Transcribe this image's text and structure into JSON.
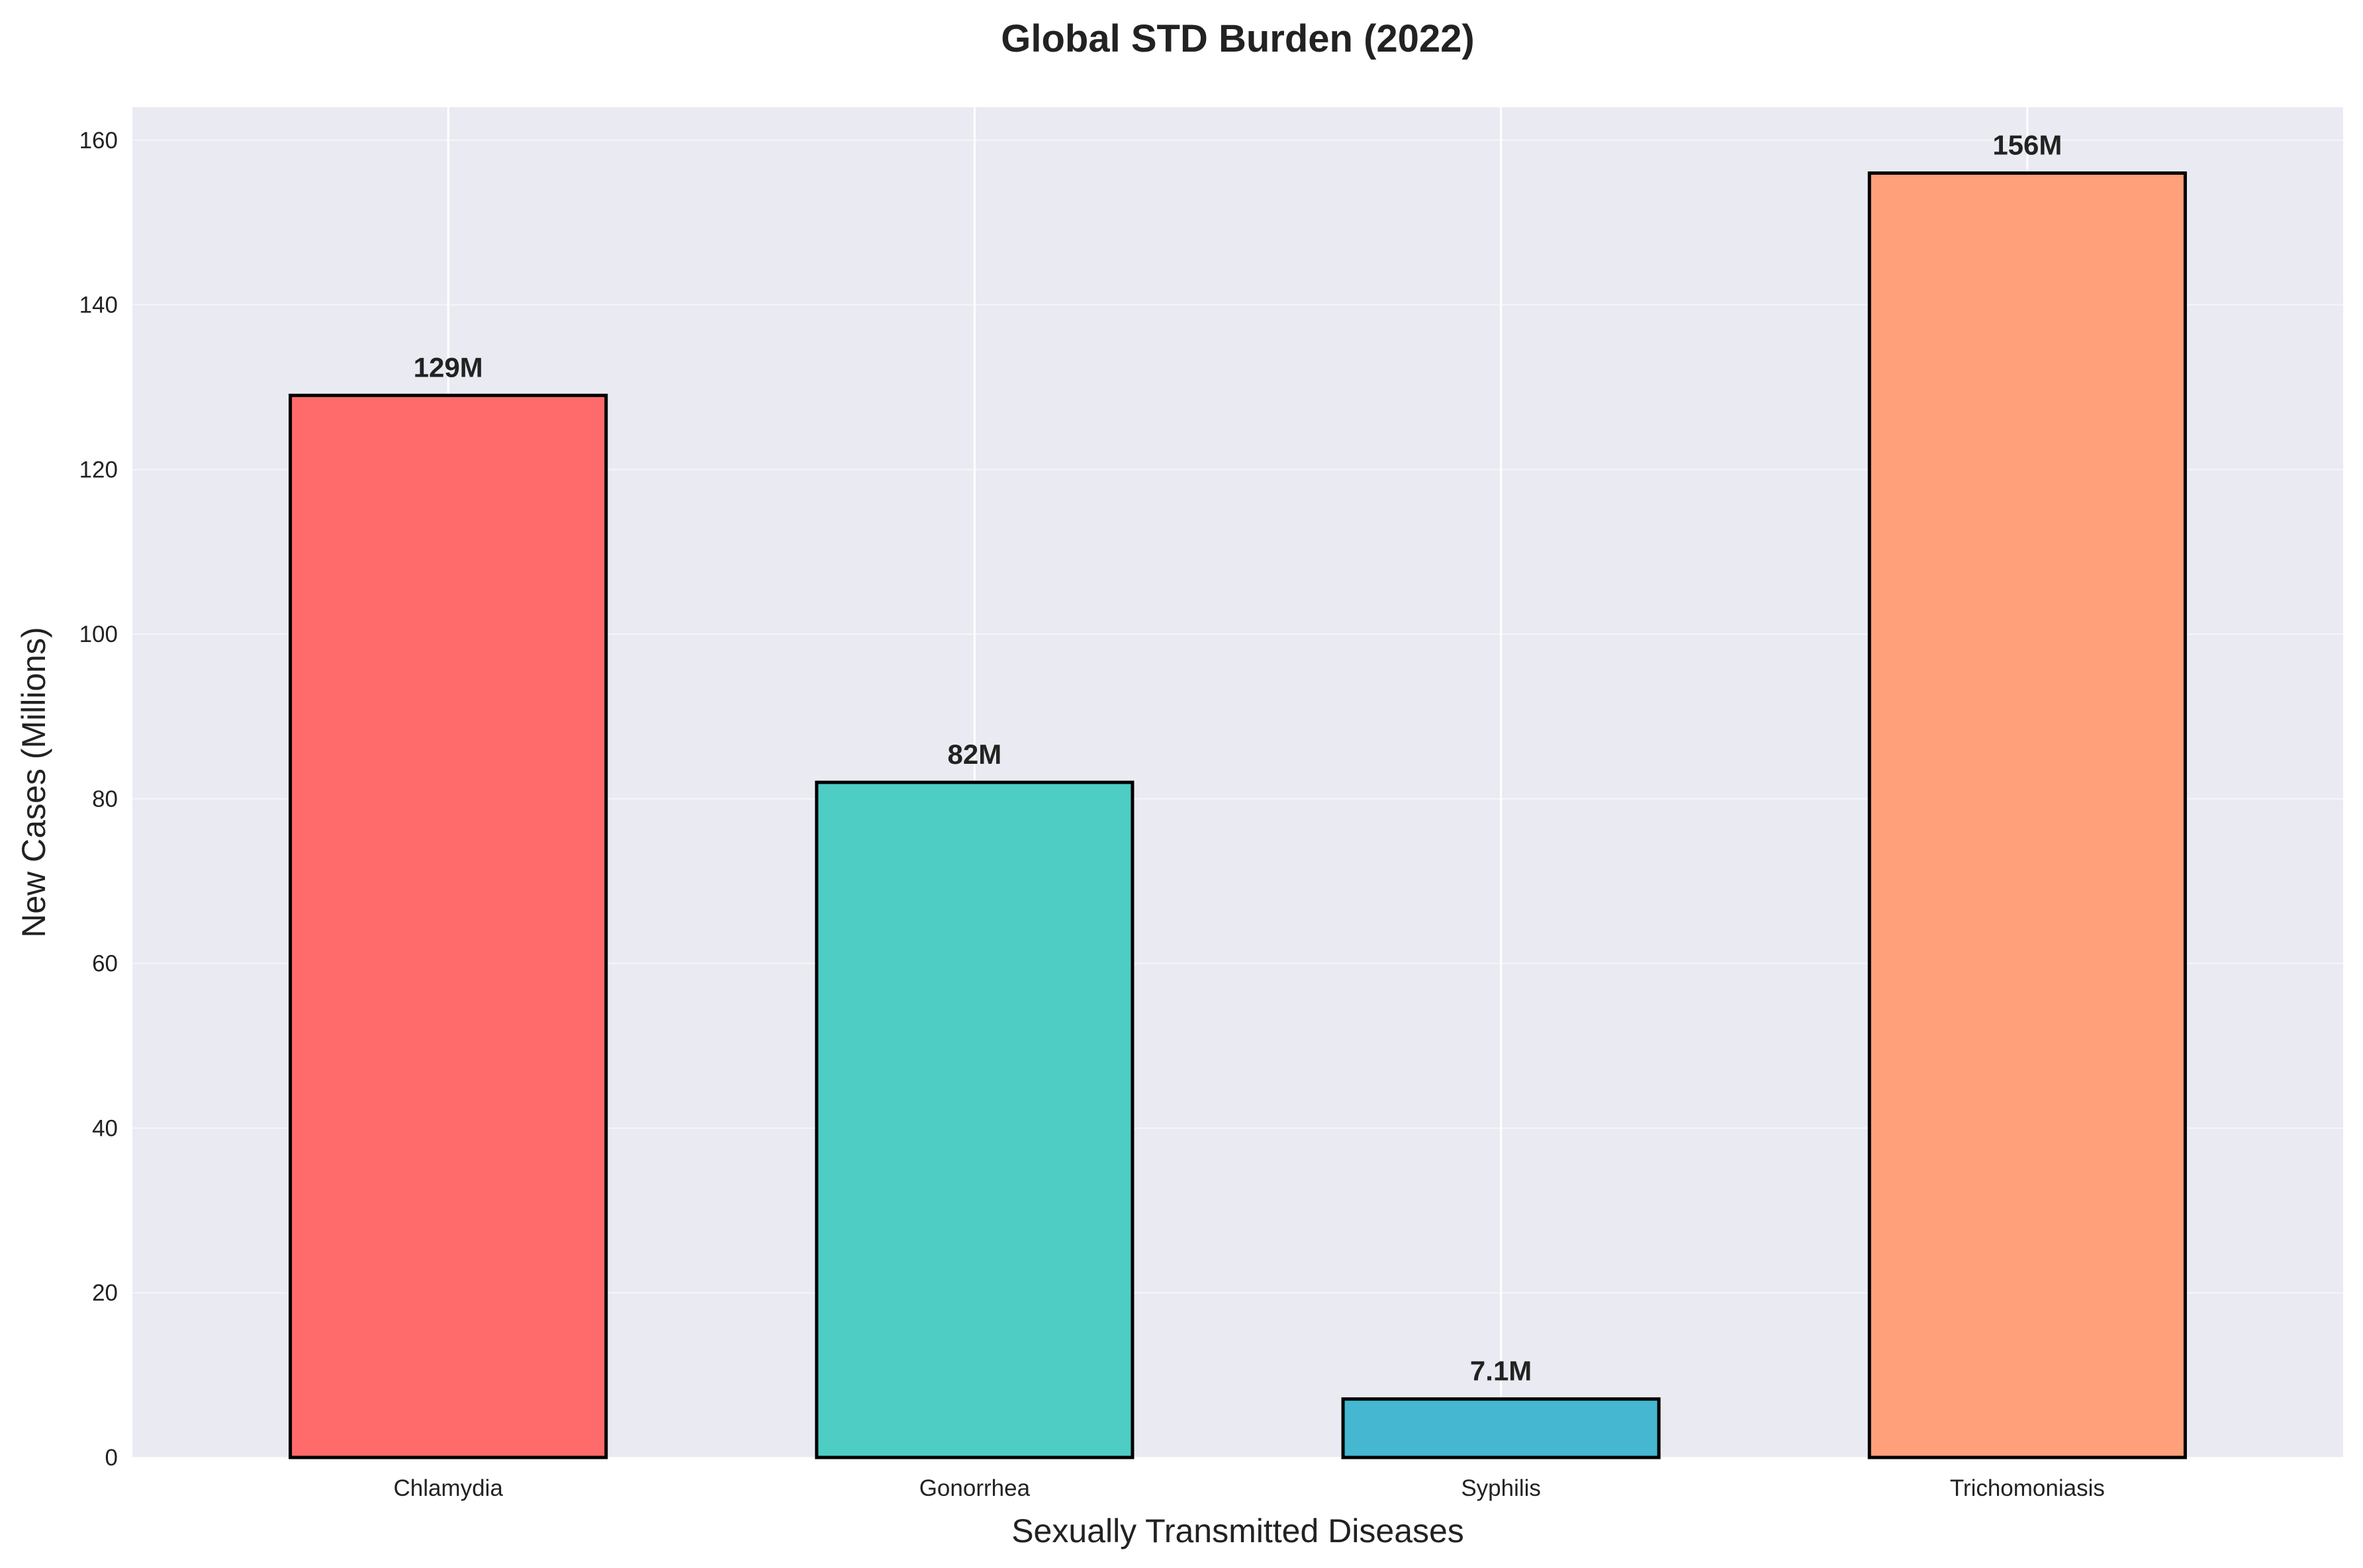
{
  "chart_data": {
    "type": "bar",
    "title": "Global STD Burden (2022)",
    "xlabel": "Sexually Transmitted Diseases",
    "ylabel": "New Cases (Millions)",
    "categories": [
      "Chlamydia",
      "Gonorrhea",
      "Syphilis",
      "Trichomoniasis"
    ],
    "values": [
      129,
      82,
      7.1,
      156
    ],
    "data_labels": [
      "129M",
      "82M",
      "7.1M",
      "156M"
    ],
    "colors": [
      "#FF6B6B",
      "#4ECDC4",
      "#45B7D1",
      "#FFA07A"
    ],
    "edge_color": "#000000",
    "background_color": "#EAEAF2",
    "grid": true,
    "ylim": [
      0,
      164
    ],
    "yticks": [
      0,
      20,
      40,
      60,
      80,
      100,
      120,
      140,
      160
    ],
    "legend": "none"
  }
}
